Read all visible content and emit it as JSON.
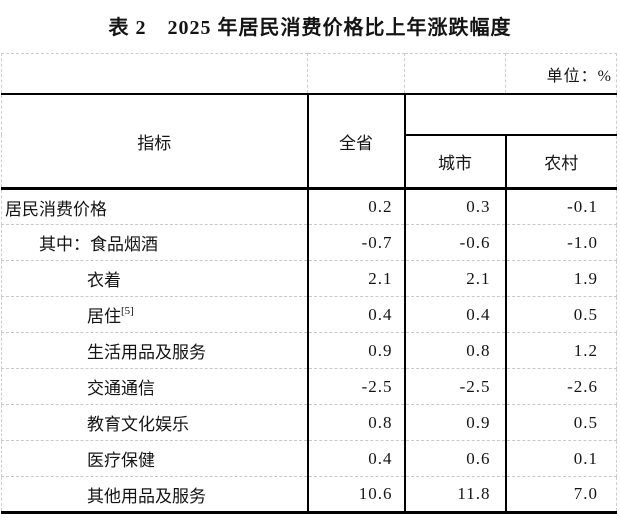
{
  "title": "表 2　2025 年居民消费价格比上年涨跌幅度",
  "unit_label": "单位：%",
  "table": {
    "header": {
      "indicator": "指标",
      "province": "全省",
      "city": "城市",
      "rural": "农村"
    },
    "rows": [
      {
        "label": "居民消费价格",
        "indent": 0,
        "values": [
          "0.2",
          "0.3",
          "-0.1"
        ]
      },
      {
        "label": "其中：食品烟酒",
        "indent": 1,
        "values": [
          "-0.7",
          "-0.6",
          "-1.0"
        ]
      },
      {
        "label": "衣着",
        "indent": 2,
        "values": [
          "2.1",
          "2.1",
          "1.9"
        ]
      },
      {
        "label": "居住",
        "sup": "[5]",
        "indent": 2,
        "values": [
          "0.4",
          "0.4",
          "0.5"
        ]
      },
      {
        "label": "生活用品及服务",
        "indent": 2,
        "values": [
          "0.9",
          "0.8",
          "1.2"
        ]
      },
      {
        "label": "交通通信",
        "indent": 2,
        "values": [
          "-2.5",
          "-2.5",
          "-2.6"
        ]
      },
      {
        "label": "教育文化娱乐",
        "indent": 2,
        "values": [
          "0.8",
          "0.9",
          "0.5"
        ]
      },
      {
        "label": "医疗保健",
        "indent": 2,
        "values": [
          "0.4",
          "0.6",
          "0.1"
        ]
      },
      {
        "label": "其他用品及服务",
        "indent": 2,
        "values": [
          "10.6",
          "11.8",
          "7.0"
        ]
      }
    ]
  },
  "colors": {
    "border_dark": "#000000",
    "border_light": "#c9c9c9",
    "text": "#141414",
    "background": "#ffffff"
  }
}
